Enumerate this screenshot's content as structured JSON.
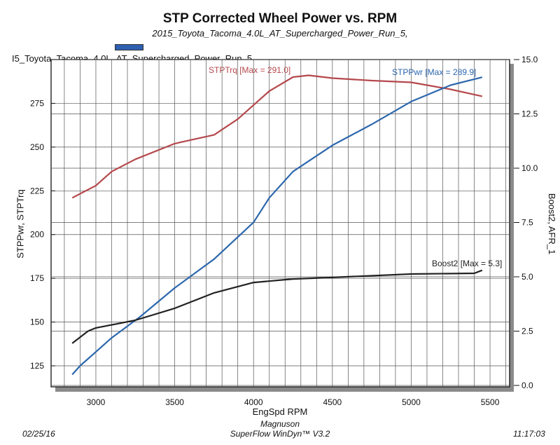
{
  "header": {
    "title": "STP Corrected Wheel Power vs. RPM",
    "subtitle": "2015_Toyota_Tacoma_4.0L_AT_Supercharged_Power_Run_5,",
    "legend_run": "I5_Toyota_Tacoma_4.0L_AT_Supercharged_Power_Run_5",
    "legend_color": "#2e5fb0"
  },
  "footer": {
    "date": "02/25/16",
    "company": "Magnuson",
    "software": "SuperFlow WinDyn™ V3.2",
    "time": "11:17:03"
  },
  "chart_data": {
    "type": "line",
    "title": "STP Corrected Wheel Power vs. RPM",
    "xlabel": "EngSpd RPM",
    "ylabel": "STPPwr, STPTrq",
    "y2label": "Boost2, AFR_1",
    "xlim": [
      2716,
      5624
    ],
    "ylim": [
      113,
      300
    ],
    "y2lim": [
      0,
      15
    ],
    "xticks": [
      "3000",
      "3500",
      "4000",
      "4500",
      "5000",
      "5500"
    ],
    "yticks": [
      "125",
      "150",
      "175",
      "200",
      "225",
      "250",
      "275"
    ],
    "y2ticks": [
      "0.0",
      "2.5",
      "5.0",
      "7.5",
      "10.0",
      "12.5",
      "15.0"
    ],
    "grid": true,
    "series": [
      {
        "name": "STPTrq",
        "label": "STPTrq [Max = 291.0]",
        "axis": "left",
        "color": "#b5484c",
        "x": [
          2850,
          3000,
          3100,
          3250,
          3500,
          3750,
          3900,
          4000,
          4100,
          4250,
          4350,
          4500,
          4750,
          5000,
          5250,
          5450
        ],
        "y": [
          221,
          228,
          236,
          243,
          252,
          257,
          266,
          274,
          282,
          290,
          291,
          289.4,
          288,
          287,
          283,
          279
        ]
      },
      {
        "name": "STPPwr",
        "label": "STPPwr [Max = 289.9]",
        "axis": "left",
        "color": "#2c67ad",
        "x": [
          2850,
          2900,
          3000,
          3100,
          3280,
          3500,
          3750,
          4000,
          4100,
          4250,
          4500,
          4750,
          5000,
          5250,
          5450
        ],
        "y": [
          120,
          125,
          133,
          141,
          153,
          169.5,
          186,
          207,
          221,
          236,
          251,
          263,
          276,
          285.4,
          289.9
        ]
      },
      {
        "name": "Boost2",
        "label": "Boost2 [Max = 5.3]",
        "axis": "right",
        "color": "#222222",
        "x": [
          2850,
          2950,
          3000,
          3250,
          3500,
          3750,
          4000,
          4250,
          4500,
          5000,
          5400,
          5450
        ],
        "y": [
          1.94,
          2.5,
          2.65,
          3.0,
          3.55,
          4.26,
          4.74,
          4.9,
          4.97,
          5.13,
          5.16,
          5.3
        ]
      }
    ]
  }
}
